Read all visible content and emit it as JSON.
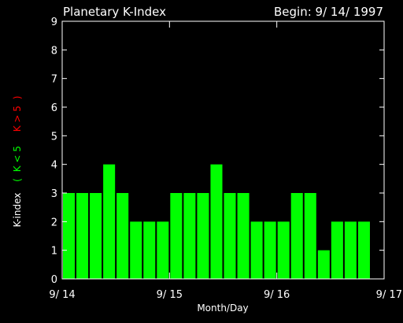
{
  "chart_data": {
    "type": "bar",
    "title": "Planetary K-Index",
    "begin_label": "Begin: 9/ 14/ 1997",
    "xlabel": "Month/Day",
    "ylabel_prefix": "K-index",
    "ylabel_low": "K < 5",
    "ylabel_high": "K > 5",
    "ylim": [
      0,
      9
    ],
    "yticks": [
      "0",
      "1",
      "2",
      "3",
      "4",
      "5",
      "6",
      "7",
      "8",
      "9"
    ],
    "xticks": [
      "9/ 14",
      "9/ 15",
      "9/ 16",
      "9/ 17"
    ],
    "bars_per_day": 8,
    "values": [
      3,
      3,
      3,
      4,
      3,
      2,
      2,
      2,
      3,
      3,
      3,
      4,
      3,
      3,
      2,
      2,
      2,
      3,
      3,
      1,
      2,
      2,
      2
    ],
    "colors": {
      "background": "#000000",
      "axis": "#ffffff",
      "bar_low": "#00ff00",
      "bar_high": "#ff0000",
      "label_low": "#00ff00",
      "label_high": "#ff0000"
    }
  }
}
